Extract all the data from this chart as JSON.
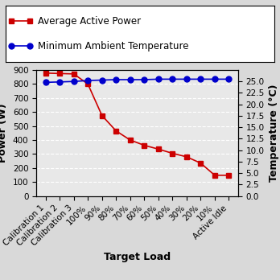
{
  "categories": [
    "Calibration 1",
    "Calibration 2",
    "Calibration 3",
    "100%",
    "90%",
    "80%",
    "70%",
    "60%",
    "50%",
    "40%",
    "30%",
    "20%",
    "10%",
    "Active Idle"
  ],
  "power_values": [
    878,
    875,
    872,
    800,
    575,
    465,
    400,
    362,
    335,
    305,
    280,
    235,
    148,
    148
  ],
  "temp_values": [
    24.8,
    24.9,
    25.0,
    25.2,
    25.3,
    25.4,
    25.4,
    25.4,
    25.5,
    25.5,
    25.5,
    25.5,
    25.5,
    25.5
  ],
  "power_color": "#cc0000",
  "temp_color": "#0000cc",
  "title_power": "Average Active Power",
  "title_temp": "Minimum Ambient Temperature",
  "xlabel": "Target Load",
  "ylabel_left": "Power (W)",
  "ylabel_right": "Temperature (°C)",
  "ylim_left": [
    0,
    900
  ],
  "ylim_right": [
    0.0,
    27.5
  ],
  "yticks_left": [
    0,
    100,
    200,
    300,
    400,
    500,
    600,
    700,
    800,
    900
  ],
  "yticks_right": [
    0.0,
    2.5,
    5.0,
    7.5,
    10.0,
    12.5,
    15.0,
    17.5,
    20.0,
    22.5,
    25.0
  ],
  "bg_color": "#d9d9d9",
  "plot_bg_color": "#e8e8e8",
  "grid_color": "#ffffff",
  "legend_fontsize": 8.5,
  "axis_fontsize": 9,
  "tick_fontsize": 7.5
}
